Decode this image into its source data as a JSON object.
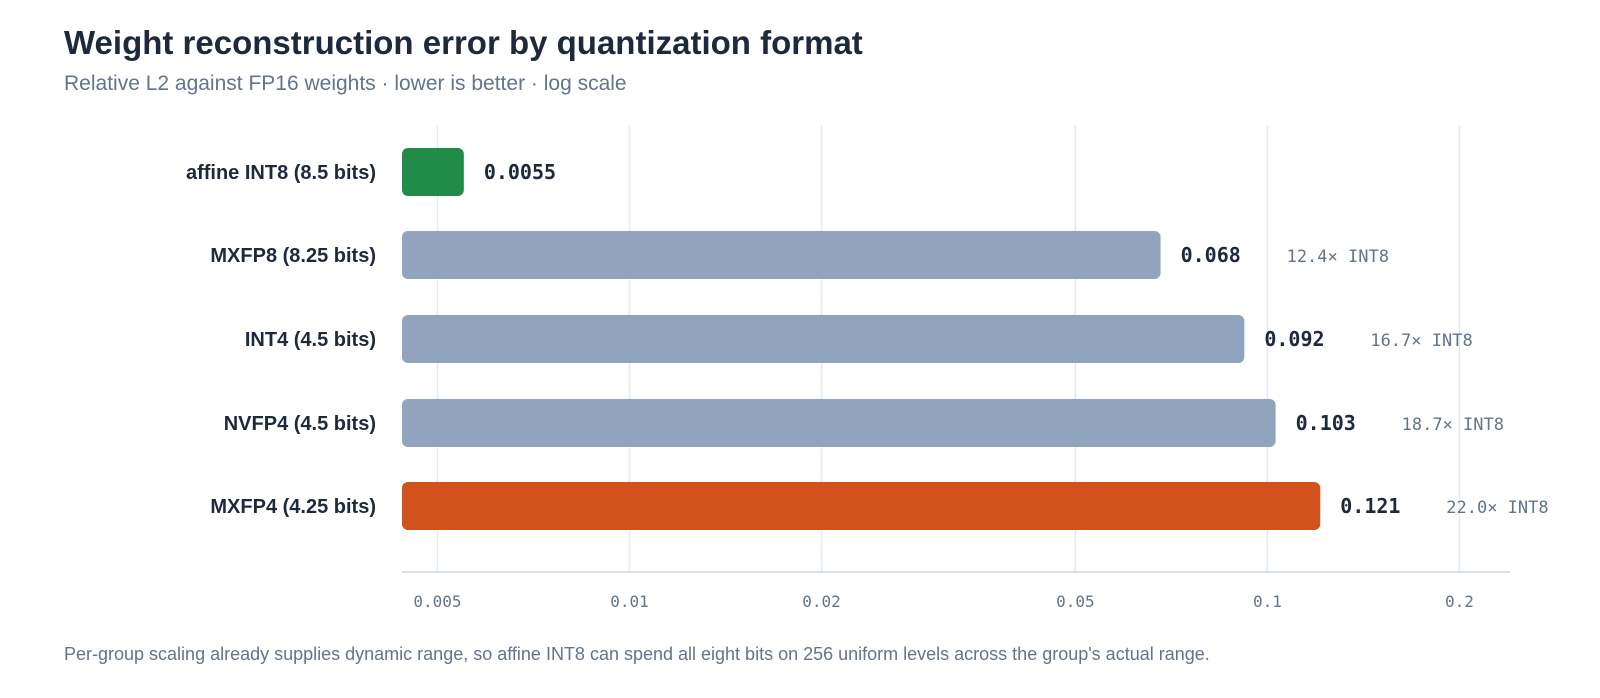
{
  "header": {
    "title": "Weight reconstruction error by quantization format",
    "subtitle": "Relative L2 against FP16 weights · lower is better · log scale"
  },
  "footnote": "Per-group scaling already supplies dynamic range, so affine INT8 can spend all eight bits on 256 uniform levels across the group's actual range.",
  "chart_data": {
    "type": "bar",
    "orientation": "horizontal",
    "x_scale": "log",
    "xlim": [
      0.0044,
      0.24
    ],
    "xticks": [
      0.005,
      0.01,
      0.02,
      0.05,
      0.1,
      0.2
    ],
    "xtick_labels": [
      "0.005",
      "0.01",
      "0.02",
      "0.05",
      "0.1",
      "0.2"
    ],
    "grid": true,
    "categories": [
      "affine INT8 (8.5 bits)",
      "MXFP8 (8.25 bits)",
      "INT4 (4.5 bits)",
      "NVFP4 (4.5 bits)",
      "MXFP4 (4.25 bits)"
    ],
    "values": [
      0.0055,
      0.068,
      0.092,
      0.103,
      0.121
    ],
    "value_labels": [
      "0.0055",
      "0.068",
      "0.092",
      "0.103",
      "0.121"
    ],
    "ratio_labels": [
      "",
      "12.4× INT8",
      "16.7× INT8",
      "18.7× INT8",
      "22.0× INT8"
    ],
    "bar_colors": [
      "#218b4a",
      "#90a4be",
      "#90a4be",
      "#90a4be",
      "#d2521d"
    ]
  }
}
